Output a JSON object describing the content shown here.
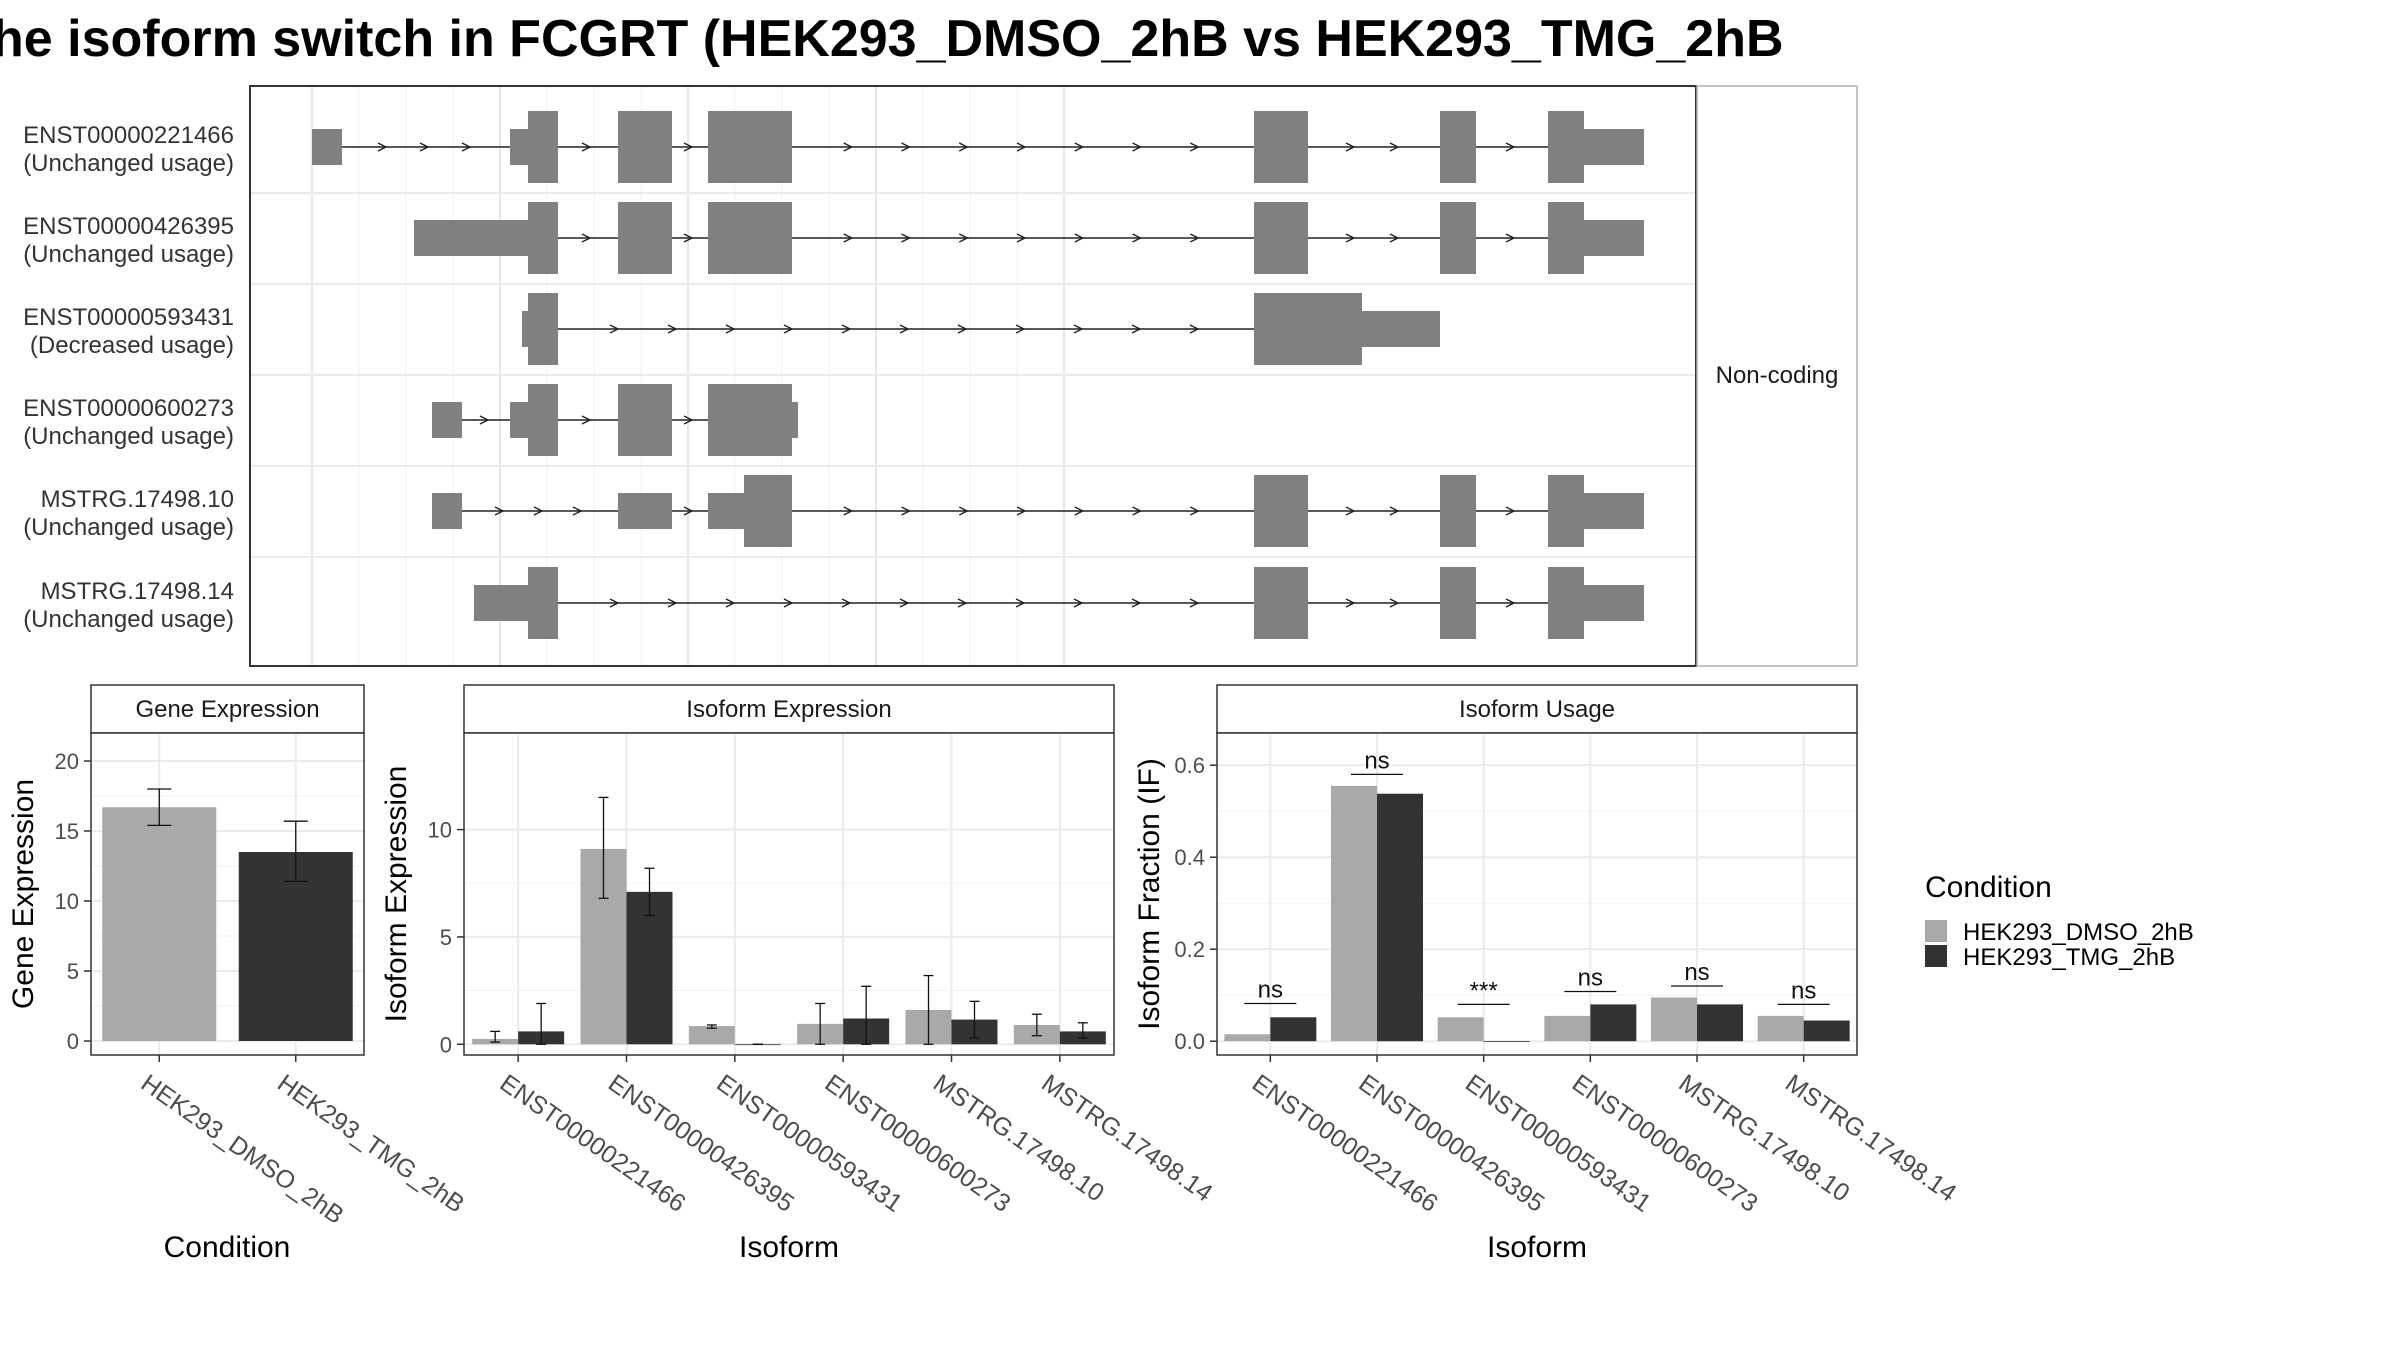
{
  "title": "he isoform switch in FCGRT (HEK293_DMSO_2hB vs HEK293_TMG_2hB",
  "colors": {
    "dmso": "#a9a9a9",
    "tmg": "#333333",
    "exon": "#808080",
    "grid": "#ebebeb",
    "panel_border": "#333333",
    "strip_border": "#b0b0b0"
  },
  "structure": {
    "facet_label": "Non-coding",
    "coord_range": [
      0,
      100
    ],
    "transcripts": [
      {
        "label_id": "ENST00000221466",
        "label_usage": "(Unchanged usage)",
        "exons": [
          [
            0,
            2.5,
            "s"
          ],
          [
            16.5,
            18,
            "s"
          ],
          [
            18,
            20.5,
            "b"
          ],
          [
            25.5,
            30,
            "b"
          ],
          [
            33,
            40,
            "b"
          ],
          [
            78.5,
            83,
            "b"
          ],
          [
            94,
            97,
            "b"
          ],
          [
            103,
            106,
            "b"
          ],
          [
            106,
            111,
            "s"
          ]
        ]
      },
      {
        "label_id": "ENST00000426395",
        "label_usage": "(Unchanged usage)",
        "exons": [
          [
            8.5,
            18,
            "s"
          ],
          [
            18,
            20.5,
            "b"
          ],
          [
            25.5,
            30,
            "b"
          ],
          [
            33,
            40,
            "b"
          ],
          [
            78.5,
            83,
            "b"
          ],
          [
            94,
            97,
            "b"
          ],
          [
            103,
            106,
            "b"
          ],
          [
            106,
            111,
            "s"
          ]
        ]
      },
      {
        "label_id": "ENST00000593431",
        "label_usage": "(Decreased usage)",
        "exons": [
          [
            17.5,
            18,
            "s"
          ],
          [
            18,
            20.5,
            "b"
          ],
          [
            78.5,
            87.5,
            "b"
          ],
          [
            87.5,
            94,
            "s"
          ]
        ]
      },
      {
        "label_id": "ENST00000600273",
        "label_usage": "(Unchanged usage)",
        "exons": [
          [
            10,
            12.5,
            "s"
          ],
          [
            16.5,
            18,
            "s"
          ],
          [
            18,
            20.5,
            "b"
          ],
          [
            25.5,
            30,
            "b"
          ],
          [
            33,
            40,
            "b"
          ],
          [
            40,
            40.5,
            "s"
          ]
        ]
      },
      {
        "label_id": "MSTRG.17498.10",
        "label_usage": "(Unchanged usage)",
        "exons": [
          [
            10,
            12.5,
            "s"
          ],
          [
            25.5,
            30,
            "s"
          ],
          [
            33,
            36,
            "s"
          ],
          [
            36,
            40,
            "b"
          ],
          [
            78.5,
            83,
            "b"
          ],
          [
            94,
            97,
            "b"
          ],
          [
            103,
            106,
            "b"
          ],
          [
            106,
            111,
            "s"
          ]
        ]
      },
      {
        "label_id": "MSTRG.17498.14",
        "label_usage": "(Unchanged usage)",
        "exons": [
          [
            13.5,
            18,
            "s"
          ],
          [
            18,
            20.5,
            "b"
          ],
          [
            78.5,
            83,
            "b"
          ],
          [
            94,
            97,
            "b"
          ],
          [
            103,
            106,
            "b"
          ],
          [
            106,
            111,
            "s"
          ]
        ]
      }
    ]
  },
  "legend": {
    "title": "Condition",
    "items": [
      {
        "label": "HEK293_DMSO_2hB",
        "color": "#a9a9a9"
      },
      {
        "label": "HEK293_TMG_2hB",
        "color": "#333333"
      }
    ]
  },
  "chart_data": [
    {
      "type": "bar",
      "strip": "Gene Expression",
      "xlabel": "Condition",
      "ylabel": "Gene Expression",
      "ylim": [
        -1,
        22
      ],
      "yticks": [
        0,
        5,
        10,
        15,
        20
      ],
      "categories": [
        "HEK293_DMSO_2hB",
        "HEK293_TMG_2hB"
      ],
      "values": [
        16.7,
        13.5
      ],
      "errors": [
        [
          15.4,
          18.0
        ],
        [
          11.4,
          15.7
        ]
      ]
    },
    {
      "type": "bar",
      "strip": "Isoform Expression",
      "xlabel": "Isoform",
      "ylabel": "Isoform Expression",
      "ylim": [
        -0.5,
        14.5
      ],
      "yticks": [
        0,
        5,
        10
      ],
      "categories": [
        "ENST00000221466",
        "ENST00000426395",
        "ENST00000593431",
        "ENST00000600273",
        "MSTRG.17498.10",
        "MSTRG.17498.14"
      ],
      "series": [
        {
          "values": [
            0.25,
            9.1,
            0.85,
            0.95,
            1.6,
            0.9
          ],
          "errors": [
            [
              0.1,
              0.6
            ],
            [
              6.8,
              11.5
            ],
            [
              0.75,
              0.9
            ],
            [
              0,
              1.9
            ],
            [
              0,
              3.2
            ],
            [
              0.4,
              1.4
            ]
          ]
        },
        {
          "values": [
            0.6,
            7.1,
            0.0,
            1.2,
            1.15,
            0.6
          ],
          "errors": [
            [
              0,
              1.9
            ],
            [
              6.0,
              8.2
            ],
            [
              0,
              0
            ],
            [
              0,
              2.7
            ],
            [
              0.3,
              2.0
            ],
            [
              0.3,
              1.0
            ]
          ]
        }
      ]
    },
    {
      "type": "bar",
      "strip": "Isoform Usage",
      "xlabel": "Isoform",
      "ylabel": "Isoform Fraction (IF)",
      "ylim": [
        -0.03,
        0.67
      ],
      "yticks": [
        0.0,
        0.2,
        0.4,
        0.6
      ],
      "ytick_labels": [
        "0.0",
        "0.2",
        "0.4",
        "0.6"
      ],
      "categories": [
        "ENST00000221466",
        "ENST00000426395",
        "ENST00000593431",
        "ENST00000600273",
        "MSTRG.17498.10",
        "MSTRG.17498.14"
      ],
      "series": [
        {
          "values": [
            0.015,
            0.555,
            0.052,
            0.055,
            0.095,
            0.055
          ]
        },
        {
          "values": [
            0.052,
            0.538,
            0.0,
            0.08,
            0.08,
            0.045
          ]
        }
      ],
      "significance": [
        "ns",
        "ns",
        "***",
        "ns",
        "ns",
        "ns"
      ],
      "sig_y": [
        0.082,
        0.58,
        0.08,
        0.108,
        0.12,
        0.08
      ]
    }
  ]
}
